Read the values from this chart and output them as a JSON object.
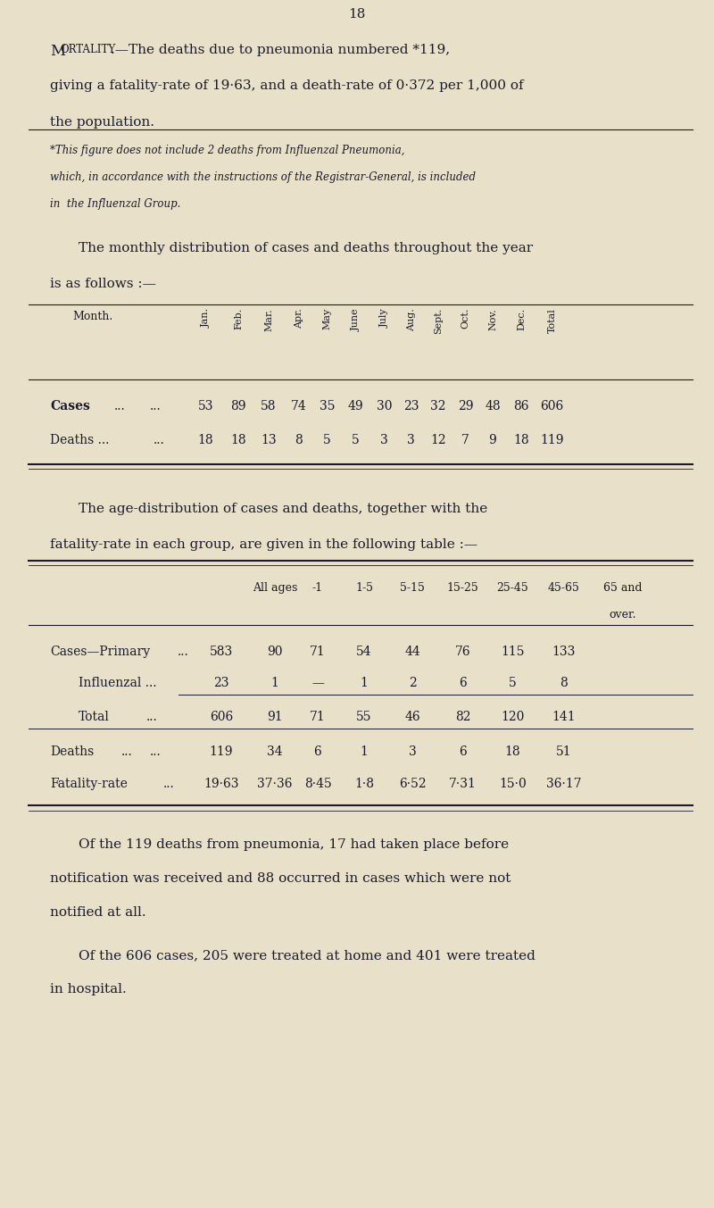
{
  "page_number": "18",
  "bg_color": "#e8e0c8",
  "text_color": "#1a1a2e",
  "page_width": 8.0,
  "page_height": 13.53,
  "dpi": 100,
  "month_headers": [
    "Jan.",
    "Feb.",
    "Mar.",
    "Apr.",
    "May",
    "June",
    "July",
    "Aug.",
    "Sept.",
    "Oct.",
    "Nov.",
    "Dec.",
    "Total"
  ],
  "cases_row": [
    53,
    89,
    58,
    74,
    35,
    49,
    30,
    23,
    32,
    29,
    48,
    86,
    606
  ],
  "deaths_row": [
    18,
    18,
    13,
    8,
    5,
    5,
    3,
    3,
    12,
    7,
    9,
    18,
    119
  ],
  "age_headers1": [
    "All ages",
    "-1",
    "1-5",
    "5-15",
    "15-25",
    "25-45",
    "45-65",
    "65 and"
  ],
  "age_headers2": [
    "",
    "",
    "",
    "",
    "",
    "",
    "",
    "over."
  ],
  "age_row_labels": [
    "Cases—Primary",
    "Influenzal ...",
    "Total",
    "Deaths",
    "Fatality-rate"
  ],
  "age_row_dots": [
    "...",
    "",
    "...",
    "...",
    "..."
  ],
  "age_row_data": [
    [
      "583",
      "90",
      "71",
      "54",
      "44",
      "76",
      "115",
      "133"
    ],
    [
      "23",
      "1",
      "—",
      "1",
      "2",
      "6",
      "5",
      "8"
    ],
    [
      "606",
      "91",
      "71",
      "55",
      "46",
      "82",
      "120",
      "141"
    ],
    [
      "119",
      "34",
      "6",
      "1",
      "3",
      "6",
      "18",
      "51"
    ],
    [
      "19·63",
      "37·36",
      "8·45",
      "1·8",
      "6·52",
      "7·31",
      "15·0",
      "36·17"
    ]
  ],
  "closing_para1_line1": "Of the 119 deaths from pneumonia, 17 had taken place before",
  "closing_para1_line2": "notification was received and 88 occurred in cases which were not",
  "closing_para1_line3": "notified at all.",
  "closing_para2_line1": "Of the 606 cases, 205 were treated at home and 401 were treated",
  "closing_para2_line2": "in hospital."
}
